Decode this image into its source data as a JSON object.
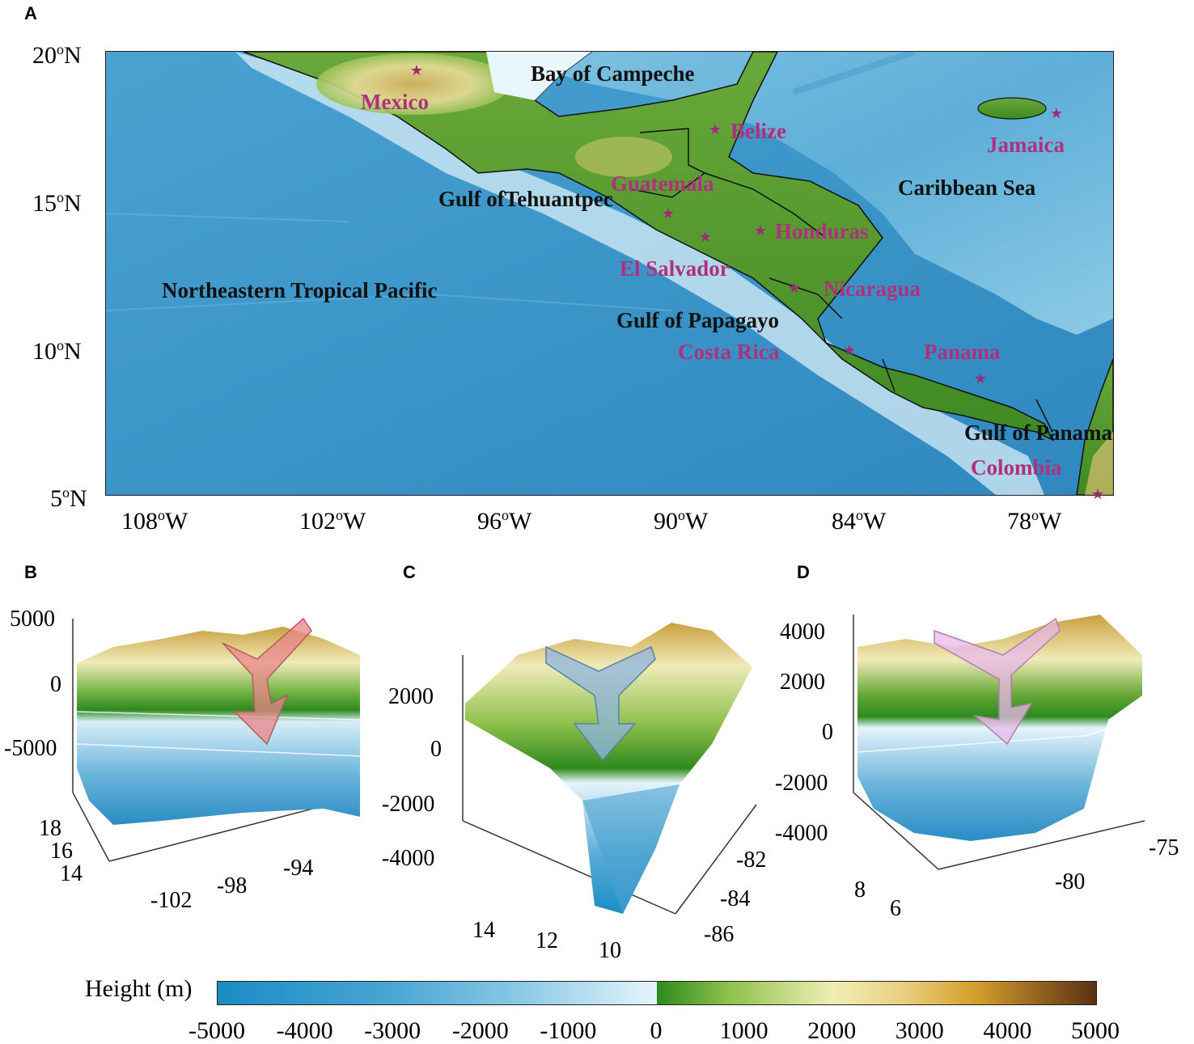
{
  "panels": {
    "a": "A",
    "b": "B",
    "c": "C",
    "d": "D"
  },
  "map_a": {
    "lat_ticks": [
      {
        "label": "20°N",
        "deg": 20
      },
      {
        "label": "15°N",
        "deg": 15
      },
      {
        "label": "10°N",
        "deg": 10
      },
      {
        "label": "5°N",
        "deg": 5
      }
    ],
    "lon_ticks": [
      {
        "label": "108°W",
        "deg": -108
      },
      {
        "label": "102°W",
        "deg": -102
      },
      {
        "label": "96°W",
        "deg": -96
      },
      {
        "label": "90°W",
        "deg": -90
      },
      {
        "label": "84°W",
        "deg": -84
      },
      {
        "label": "78°W",
        "deg": -78
      }
    ],
    "water_labels": {
      "bay_campeche": "Bay of Campeche",
      "gulf_tehuantepec": "Gulf ofTehuantpec",
      "caribbean": "Caribbean Sea",
      "ne_tropical_pacific": "Northeastern Tropical Pacific",
      "gulf_papagayo": "Gulf of Papagayo",
      "gulf_panama": "Gulf of Panama"
    },
    "countries": {
      "mexico": "Mexico",
      "belize": "Belize",
      "jamaica": "Jamaica",
      "guatemala": "Guatemala",
      "honduras": "Honduras",
      "el_salvador": "El Salvador",
      "nicaragua": "Nicaragua",
      "costa_rica": "Costa Rica",
      "panama": "Panama",
      "colombia": "Colombia"
    },
    "star_glyph": "★"
  },
  "panel_b": {
    "z_ticks": [
      "5000",
      "0",
      "-5000"
    ],
    "lat_ticks": [
      "18",
      "16",
      "14"
    ],
    "lon_ticks": [
      "-102",
      "-98",
      "-94"
    ],
    "arrow_color": "#e8868a"
  },
  "panel_c": {
    "z_ticks": [
      "2000",
      "0",
      "-2000",
      "-4000"
    ],
    "lat_ticks": [
      "14",
      "12",
      "10"
    ],
    "lon_ticks": [
      "-82",
      "-84",
      "-86"
    ],
    "arrow_color": "#8fb4e0"
  },
  "panel_d": {
    "z_ticks": [
      "4000",
      "2000",
      "0",
      "-2000",
      "-4000"
    ],
    "lat_ticks": [
      "8",
      "6"
    ],
    "lon_ticks": [
      "-80",
      "-75"
    ],
    "arrow_color": "#e8b8e8"
  },
  "colorbar": {
    "title": "Height (m)",
    "ticks": [
      "-5000",
      "-4000",
      "-3000",
      "-2000",
      "-1000",
      "0",
      "1000",
      "2000",
      "3000",
      "4000",
      "5000"
    ],
    "colors": {
      "deep": "#1a8cc4",
      "shallow": "#e6f4fb",
      "low_land": "#2e8a1e",
      "mid_land": "#f1efb4",
      "high_land": "#d6a02c",
      "peak": "#5a3014"
    }
  }
}
